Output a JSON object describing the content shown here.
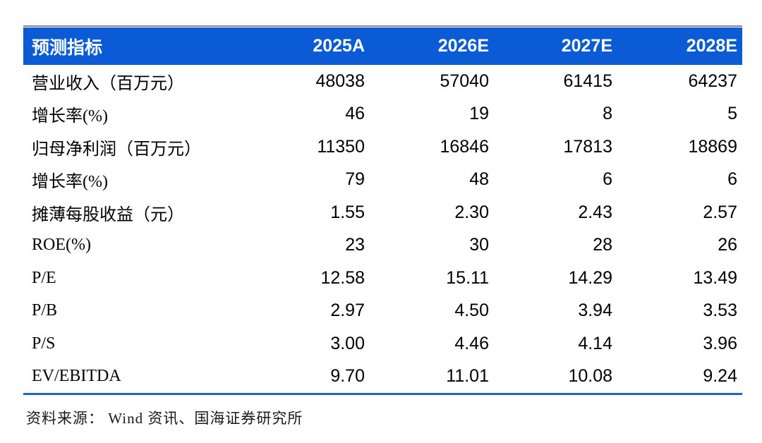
{
  "colors": {
    "header_bg": "#0b5bd6",
    "header_text": "#ffffff",
    "bottom_rule": "#1f5fd9",
    "top_rule": "#848484",
    "body_text": "#000000",
    "footer_text": "#1a1a1a"
  },
  "table": {
    "columns": [
      "预测指标",
      "2025A",
      "2026E",
      "2027E",
      "2028E"
    ],
    "rows": [
      {
        "label": "营业收入（百万元）",
        "values": [
          "48038",
          "57040",
          "61415",
          "64237"
        ]
      },
      {
        "label": "增长率(%)",
        "values": [
          "46",
          "19",
          "8",
          "5"
        ]
      },
      {
        "label": "归母净利润（百万元）",
        "values": [
          "11350",
          "16846",
          "17813",
          "18869"
        ]
      },
      {
        "label": "增长率(%)",
        "values": [
          "79",
          "48",
          "6",
          "6"
        ]
      },
      {
        "label": "摊薄每股收益（元）",
        "values": [
          "1.55",
          "2.30",
          "2.43",
          "2.57"
        ]
      },
      {
        "label": "ROE(%)",
        "values": [
          "23",
          "30",
          "28",
          "26"
        ]
      },
      {
        "label": "P/E",
        "values": [
          "12.58",
          "15.11",
          "14.29",
          "13.49"
        ]
      },
      {
        "label": "P/B",
        "values": [
          "2.97",
          "4.50",
          "3.94",
          "3.53"
        ]
      },
      {
        "label": "P/S",
        "values": [
          "3.00",
          "4.46",
          "4.14",
          "3.96"
        ]
      },
      {
        "label": "EV/EBITDA",
        "values": [
          "9.70",
          "11.01",
          "10.08",
          "9.24"
        ]
      }
    ]
  },
  "footer": {
    "source_text": "资料来源： Wind 资讯、国海证券研究所"
  }
}
